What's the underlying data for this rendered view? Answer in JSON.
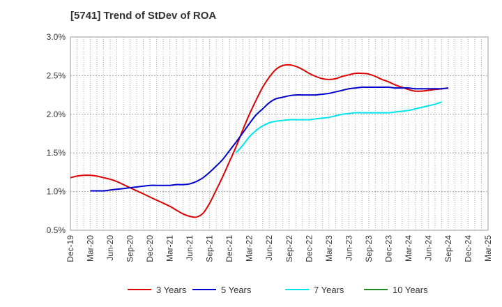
{
  "chart_data": {
    "type": "line",
    "title": "[5741]  Trend of StDev of ROA",
    "x_ticks": [
      "Dec-19",
      "Mar-20",
      "Jun-20",
      "Sep-20",
      "Dec-20",
      "Mar-21",
      "Jun-21",
      "Sep-21",
      "Dec-21",
      "Mar-22",
      "Jun-22",
      "Sep-22",
      "Dec-22",
      "Mar-23",
      "Jun-23",
      "Sep-23",
      "Dec-23",
      "Mar-24",
      "Jun-24",
      "Sep-24",
      "Dec-24",
      "Mar-25"
    ],
    "y_ticks": [
      "0.5%",
      "1.0%",
      "1.5%",
      "2.0%",
      "2.5%",
      "3.0%"
    ],
    "ylim": [
      0.5,
      3.0
    ],
    "grid": true,
    "legend_position": "bottom",
    "series": [
      {
        "name": "3 Years",
        "color": "#dd0000",
        "points": [
          [
            0,
            1.18
          ],
          [
            0.33,
            1.2
          ],
          [
            0.67,
            1.21
          ],
          [
            1,
            1.21
          ],
          [
            1.33,
            1.2
          ],
          [
            1.67,
            1.18
          ],
          [
            2,
            1.16
          ],
          [
            2.33,
            1.13
          ],
          [
            2.67,
            1.09
          ],
          [
            3,
            1.05
          ],
          [
            3.33,
            1.01
          ],
          [
            3.67,
            0.97
          ],
          [
            4,
            0.93
          ],
          [
            4.33,
            0.89
          ],
          [
            4.67,
            0.85
          ],
          [
            5,
            0.81
          ],
          [
            5.33,
            0.76
          ],
          [
            5.67,
            0.71
          ],
          [
            6,
            0.68
          ],
          [
            6.33,
            0.67
          ],
          [
            6.67,
            0.72
          ],
          [
            7,
            0.85
          ],
          [
            7.33,
            1.02
          ],
          [
            7.67,
            1.2
          ],
          [
            8,
            1.39
          ],
          [
            8.33,
            1.58
          ],
          [
            8.67,
            1.8
          ],
          [
            9,
            2.0
          ],
          [
            9.33,
            2.18
          ],
          [
            9.67,
            2.35
          ],
          [
            10,
            2.48
          ],
          [
            10.33,
            2.58
          ],
          [
            10.67,
            2.63
          ],
          [
            11,
            2.64
          ],
          [
            11.33,
            2.62
          ],
          [
            11.67,
            2.58
          ],
          [
            12,
            2.53
          ],
          [
            12.33,
            2.49
          ],
          [
            12.67,
            2.46
          ],
          [
            13,
            2.45
          ],
          [
            13.33,
            2.46
          ],
          [
            13.67,
            2.49
          ],
          [
            14,
            2.51
          ],
          [
            14.33,
            2.53
          ],
          [
            14.67,
            2.53
          ],
          [
            15,
            2.52
          ],
          [
            15.33,
            2.49
          ],
          [
            15.67,
            2.45
          ],
          [
            16,
            2.42
          ],
          [
            16.33,
            2.38
          ],
          [
            16.67,
            2.35
          ],
          [
            17,
            2.32
          ],
          [
            17.33,
            2.3
          ],
          [
            17.67,
            2.3
          ],
          [
            18,
            2.31
          ],
          [
            18.33,
            2.32
          ],
          [
            18.67,
            2.33
          ],
          [
            19,
            2.34
          ]
        ]
      },
      {
        "name": "5 Years",
        "color": "#0000cc",
        "points": [
          [
            1,
            1.01
          ],
          [
            1.33,
            1.01
          ],
          [
            1.67,
            1.01
          ],
          [
            2,
            1.02
          ],
          [
            2.33,
            1.03
          ],
          [
            2.67,
            1.04
          ],
          [
            3,
            1.05
          ],
          [
            3.33,
            1.06
          ],
          [
            3.67,
            1.07
          ],
          [
            4,
            1.08
          ],
          [
            4.33,
            1.08
          ],
          [
            4.67,
            1.08
          ],
          [
            5,
            1.08
          ],
          [
            5.33,
            1.09
          ],
          [
            5.67,
            1.09
          ],
          [
            6,
            1.1
          ],
          [
            6.33,
            1.13
          ],
          [
            6.67,
            1.18
          ],
          [
            7,
            1.25
          ],
          [
            7.33,
            1.33
          ],
          [
            7.67,
            1.42
          ],
          [
            8,
            1.53
          ],
          [
            8.33,
            1.64
          ],
          [
            8.67,
            1.76
          ],
          [
            9,
            1.88
          ],
          [
            9.33,
            1.99
          ],
          [
            9.67,
            2.07
          ],
          [
            10,
            2.15
          ],
          [
            10.33,
            2.2
          ],
          [
            10.67,
            2.22
          ],
          [
            11,
            2.24
          ],
          [
            11.33,
            2.25
          ],
          [
            11.67,
            2.25
          ],
          [
            12,
            2.25
          ],
          [
            12.33,
            2.25
          ],
          [
            12.67,
            2.26
          ],
          [
            13,
            2.27
          ],
          [
            13.33,
            2.29
          ],
          [
            13.67,
            2.31
          ],
          [
            14,
            2.33
          ],
          [
            14.33,
            2.34
          ],
          [
            14.67,
            2.35
          ],
          [
            15,
            2.35
          ],
          [
            15.33,
            2.35
          ],
          [
            15.67,
            2.35
          ],
          [
            16,
            2.35
          ],
          [
            16.33,
            2.34
          ],
          [
            16.67,
            2.34
          ],
          [
            17,
            2.34
          ],
          [
            17.33,
            2.33
          ],
          [
            17.67,
            2.33
          ],
          [
            18,
            2.33
          ],
          [
            18.33,
            2.33
          ],
          [
            18.67,
            2.33
          ],
          [
            19,
            2.34
          ]
        ]
      },
      {
        "name": "7 Years",
        "color": "#00e5ee",
        "points": [
          [
            8.33,
            1.5
          ],
          [
            8.67,
            1.6
          ],
          [
            9,
            1.71
          ],
          [
            9.33,
            1.79
          ],
          [
            9.67,
            1.85
          ],
          [
            10,
            1.89
          ],
          [
            10.33,
            1.91
          ],
          [
            10.67,
            1.92
          ],
          [
            11,
            1.93
          ],
          [
            11.33,
            1.93
          ],
          [
            11.67,
            1.93
          ],
          [
            12,
            1.93
          ],
          [
            12.33,
            1.94
          ],
          [
            12.67,
            1.95
          ],
          [
            13,
            1.96
          ],
          [
            13.33,
            1.98
          ],
          [
            13.67,
            2.0
          ],
          [
            14,
            2.01
          ],
          [
            14.33,
            2.02
          ],
          [
            14.67,
            2.02
          ],
          [
            15,
            2.02
          ],
          [
            15.33,
            2.02
          ],
          [
            15.67,
            2.02
          ],
          [
            16,
            2.02
          ],
          [
            16.33,
            2.03
          ],
          [
            16.67,
            2.04
          ],
          [
            17,
            2.05
          ],
          [
            17.33,
            2.07
          ],
          [
            17.67,
            2.09
          ],
          [
            18,
            2.11
          ],
          [
            18.33,
            2.13
          ],
          [
            18.67,
            2.16
          ]
        ]
      },
      {
        "name": "10 Years",
        "color": "#228b22",
        "points": []
      }
    ]
  }
}
